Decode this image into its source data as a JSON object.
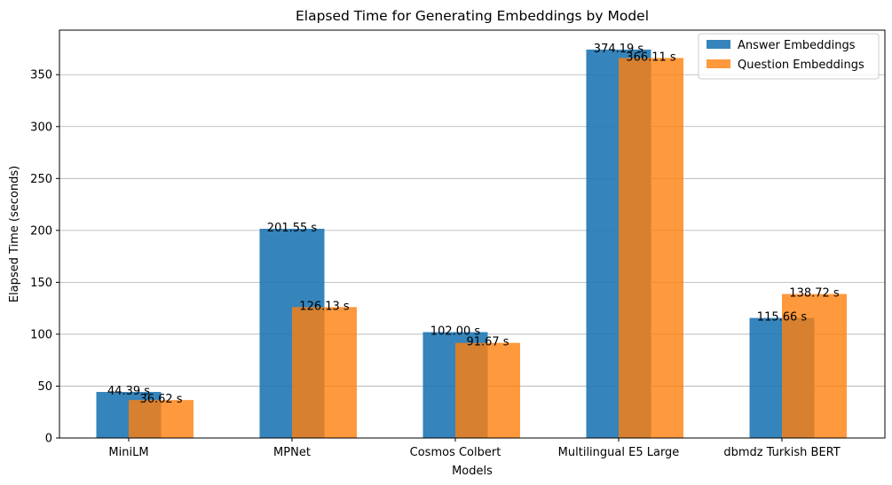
{
  "chart_data": {
    "type": "bar",
    "title": "Elapsed Time for Generating Embeddings by Model",
    "xlabel": "Models",
    "ylabel": "Elapsed Time (seconds)",
    "categories": [
      "MiniLM",
      "MPNet",
      "Cosmos Colbert",
      "Multilingual E5 Large",
      "dbmdz Turkish BERT"
    ],
    "series": [
      {
        "name": "Answer Embeddings",
        "color": "#1f77b4",
        "values": [
          44.39,
          201.55,
          102.0,
          374.19,
          115.66
        ],
        "labels": [
          "44.39 s",
          "201.55 s",
          "102.00 s",
          "374.19 s",
          "115.66 s"
        ]
      },
      {
        "name": "Question Embeddings",
        "color": "#ff7f0e",
        "values": [
          36.62,
          126.13,
          91.67,
          366.11,
          138.72
        ],
        "labels": [
          "36.62 s",
          "126.13 s",
          "91.67 s",
          "366.11 s",
          "138.72 s"
        ]
      }
    ],
    "yticks": [
      0,
      50,
      100,
      150,
      200,
      250,
      300,
      350
    ],
    "ylim": [
      0,
      392.9
    ],
    "grid": "y",
    "legend_position": "top-right"
  }
}
